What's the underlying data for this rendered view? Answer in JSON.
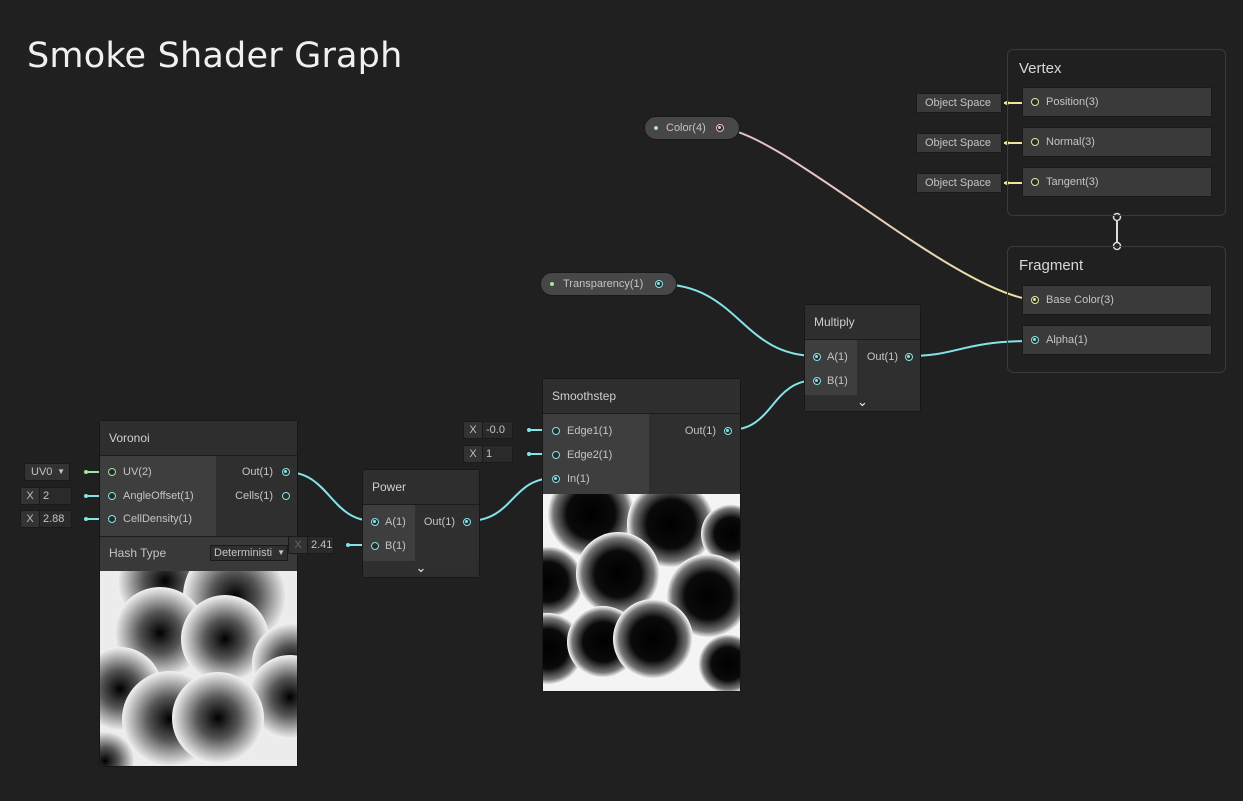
{
  "graph_title": "Smoke Shader Graph",
  "colors": {
    "background": "#202020",
    "wire_cyan": "#84e4e7",
    "wire_yellow": "#e8e69e",
    "wire_pink": "#e6b8d6",
    "wire_green": "#9ee7a0"
  },
  "voronoi": {
    "title": "Voronoi",
    "inputs": [
      "UV(2)",
      "AngleOffset(1)",
      "CellDensity(1)"
    ],
    "outputs": [
      "Out(1)",
      "Cells(1)"
    ],
    "uv_dropdown": "UV0",
    "angle_offset_axis": "X",
    "angle_offset_value": "2",
    "cell_density_axis": "X",
    "cell_density_value": "2.88",
    "hash_type_label": "Hash Type",
    "hash_type_value": "Deterministi"
  },
  "power": {
    "title": "Power",
    "inputs": [
      "A(1)",
      "B(1)"
    ],
    "output": "Out(1)",
    "b_axis": "X",
    "b_value": "2.41"
  },
  "smoothstep": {
    "title": "Smoothstep",
    "inputs": [
      "Edge1(1)",
      "Edge2(1)",
      "In(1)"
    ],
    "output": "Out(1)",
    "edge1_axis": "X",
    "edge1_value": "-0.0",
    "edge2_axis": "X",
    "edge2_value": "1"
  },
  "multiply": {
    "title": "Multiply",
    "inputs": [
      "A(1)",
      "B(1)"
    ],
    "output": "Out(1)"
  },
  "properties": {
    "color": "Color(4)",
    "transparency": "Transparency(1)"
  },
  "vertex": {
    "title": "Vertex",
    "blocks": [
      "Position(3)",
      "Normal(3)",
      "Tangent(3)"
    ],
    "space_label": "Object Space"
  },
  "fragment": {
    "title": "Fragment",
    "blocks": [
      "Base Color(3)",
      "Alpha(1)"
    ]
  }
}
